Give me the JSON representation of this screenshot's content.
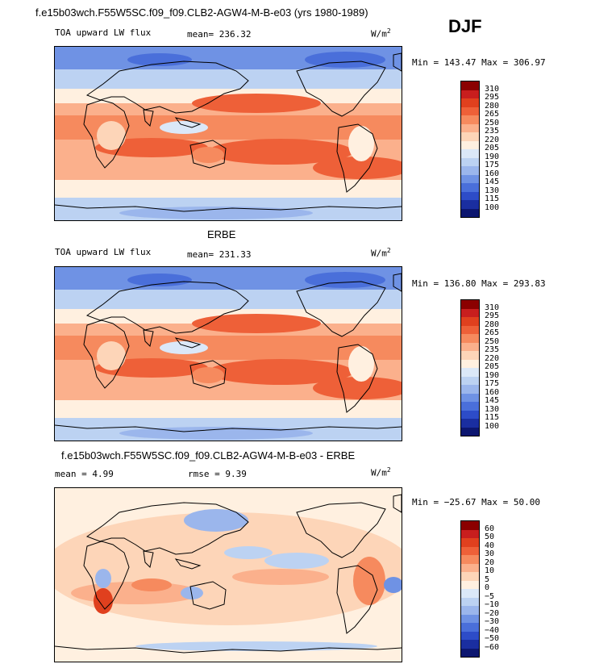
{
  "header": {
    "title": "f.e15b03wch.F55W5SC.f09_f09.CLB2-AGW4-M-B-e03 (yrs 1980-1989)",
    "season": "DJF"
  },
  "panels": [
    {
      "id": "model",
      "subtitle": "",
      "left_label": "TOA upward LW flux",
      "mean_label": "mean= 236.32",
      "units": "W/m",
      "units_sup": "2",
      "minmax": "Min = 143.47 Max = 306.97",
      "colorbar": {
        "levels": [
          "310",
          "295",
          "280",
          "265",
          "250",
          "235",
          "220",
          "205",
          "190",
          "175",
          "160",
          "145",
          "130",
          "115",
          "100"
        ],
        "colors": [
          "#8b0000",
          "#c81e1e",
          "#e0401e",
          "#ee6038",
          "#f68a5e",
          "#fbb08c",
          "#fdd5b8",
          "#fff0e0",
          "#dbe8f8",
          "#bcd2f2",
          "#9bb6ec",
          "#6f92e4",
          "#4a6fda",
          "#2d4cc8",
          "#1a2ea0",
          "#0c1670"
        ]
      }
    },
    {
      "id": "obs",
      "subtitle": "ERBE",
      "left_label": "TOA upward LW flux",
      "mean_label": "mean= 231.33",
      "units": "W/m",
      "units_sup": "2",
      "minmax": "Min = 136.80 Max = 293.83",
      "colorbar": {
        "levels": [
          "310",
          "295",
          "280",
          "265",
          "250",
          "235",
          "220",
          "205",
          "190",
          "175",
          "160",
          "145",
          "130",
          "115",
          "100"
        ],
        "colors": [
          "#8b0000",
          "#c81e1e",
          "#e0401e",
          "#ee6038",
          "#f68a5e",
          "#fbb08c",
          "#fdd5b8",
          "#fff0e0",
          "#dbe8f8",
          "#bcd2f2",
          "#9bb6ec",
          "#6f92e4",
          "#4a6fda",
          "#2d4cc8",
          "#1a2ea0",
          "#0c1670"
        ]
      }
    },
    {
      "id": "diff",
      "subtitle": "f.e15b03wch.F55W5SC.f09_f09.CLB2-AGW4-M-B-e03 - ERBE",
      "left_label": "mean =   4.99",
      "mean_label": "rmse =   9.39",
      "units": "W/m",
      "units_sup": "2",
      "minmax": "Min = −25.67 Max =  50.00",
      "colorbar": {
        "levels": [
          "60",
          "50",
          "40",
          "30",
          "20",
          "10",
          "5",
          "0",
          "−5",
          "−10",
          "−20",
          "−30",
          "−40",
          "−50",
          "−60"
        ],
        "colors": [
          "#8b0000",
          "#c81e1e",
          "#e0401e",
          "#ee6038",
          "#f68a5e",
          "#fbb08c",
          "#fdd5b8",
          "#fff0e0",
          "#dbe8f8",
          "#bcd2f2",
          "#9bb6ec",
          "#6f92e4",
          "#4a6fda",
          "#2d4cc8",
          "#1a2ea0",
          "#0c1670"
        ]
      }
    }
  ]
}
